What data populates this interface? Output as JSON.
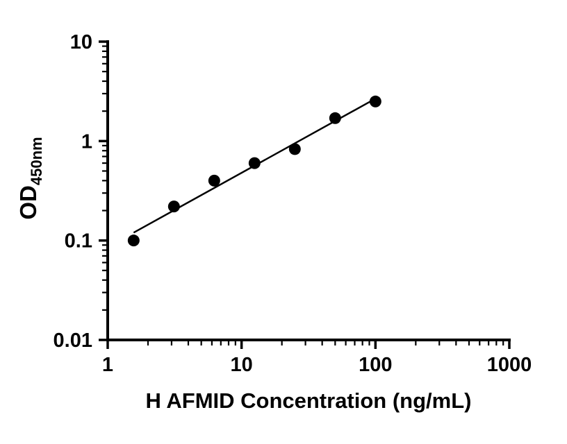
{
  "figure": {
    "background": "#ffffff",
    "axis_color": "#000000",
    "text_color": "#000000"
  },
  "chart_data": {
    "type": "scatter",
    "fit": "power-law straight line on log-log axes",
    "x": [
      1.5625,
      3.125,
      6.25,
      12.5,
      25,
      50,
      100
    ],
    "y": [
      0.1,
      0.22,
      0.4,
      0.6,
      0.83,
      1.7,
      2.5
    ],
    "title": "",
    "xlabel": "H AFMID Concentration (ng/mL)",
    "ylabel_main": "OD",
    "ylabel_sub": "450nm",
    "xscale": "log",
    "yscale": "log",
    "xlim": [
      1,
      1000
    ],
    "ylim": [
      0.01,
      10
    ],
    "x_ticks": [
      1,
      10,
      100,
      1000
    ],
    "x_tick_labels": [
      "1",
      "10",
      "100",
      "1000"
    ],
    "y_ticks": [
      0.01,
      0.1,
      1,
      10
    ],
    "y_tick_labels": [
      "0.01",
      "0.1",
      "1",
      "10"
    ],
    "minor_ticks": true,
    "grid": false,
    "legend": "none",
    "marker_color": "#000000",
    "line_color": "#000000"
  }
}
